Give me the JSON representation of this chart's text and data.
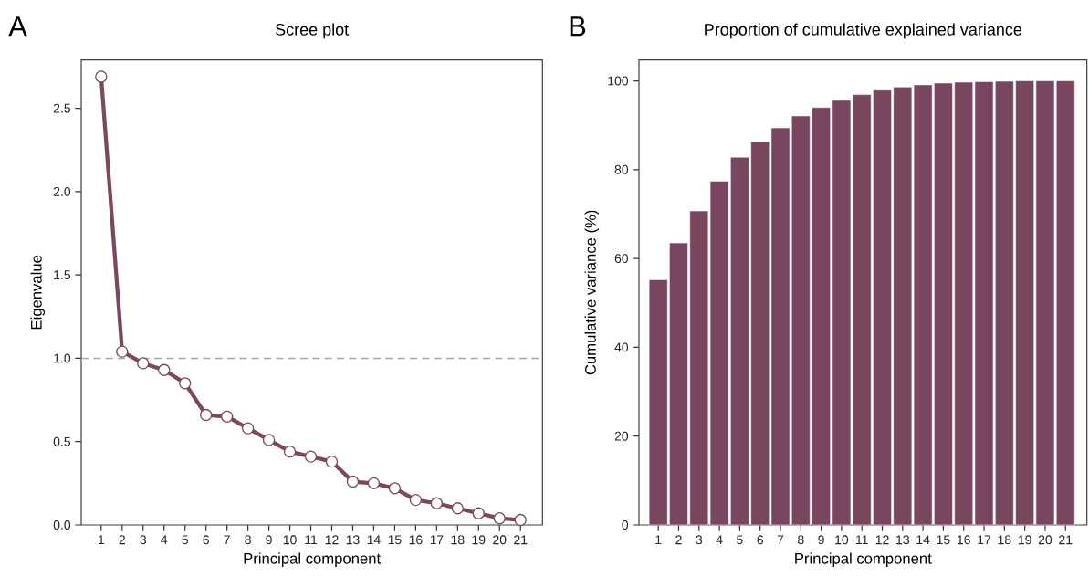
{
  "chart_data": [
    {
      "type": "line",
      "title": "Scree plot",
      "xlabel": "Principal component",
      "ylabel": "Eigenvalue",
      "categories": [
        "1",
        "2",
        "3",
        "4",
        "5",
        "6",
        "7",
        "8",
        "9",
        "10",
        "11",
        "12",
        "13",
        "14",
        "15",
        "16",
        "17",
        "18",
        "19",
        "20",
        "21"
      ],
      "series": [
        {
          "color": "#7a4961",
          "values": [
            2.69,
            1.04,
            0.97,
            0.93,
            0.85,
            0.66,
            0.65,
            0.58,
            0.51,
            0.44,
            0.41,
            0.38,
            0.26,
            0.25,
            0.22,
            0.15,
            0.13,
            0.1,
            0.07,
            0.04,
            0.03
          ]
        }
      ],
      "ylim": [
        0,
        2.79
      ],
      "yticks": [
        {
          "value": 0,
          "label": "0.0"
        },
        {
          "value": 0.5,
          "label": "0.5"
        },
        {
          "value": 1,
          "label": "1.0"
        },
        {
          "value": 1.5,
          "label": "1.5"
        },
        {
          "value": 2,
          "label": "2.0"
        },
        {
          "value": 2.5,
          "label": "2.5"
        }
      ],
      "marker": "circle",
      "line_style": "solid",
      "ref_lines": [
        {
          "axis": "y",
          "value": 1,
          "color": "#a6a6a6",
          "line_style": "dashed"
        }
      ],
      "annotations": [
        "A"
      ]
    },
    {
      "type": "bar",
      "title": "Proportion of cumulative explained variance",
      "xlabel": "Principal component",
      "ylabel": "Cumulative variance (%)",
      "categories": [
        "1",
        "2",
        "3",
        "4",
        "5",
        "6",
        "7",
        "8",
        "9",
        "10",
        "11",
        "12",
        "13",
        "14",
        "15",
        "16",
        "17",
        "18",
        "19",
        "20",
        "21"
      ],
      "series": [
        {
          "color": "#78475f",
          "values": [
            55.2,
            63.5,
            70.7,
            77.4,
            82.8,
            86.3,
            89.4,
            92.1,
            94.0,
            95.6,
            96.9,
            97.9,
            98.6,
            99.1,
            99.5,
            99.7,
            99.8,
            99.9,
            100,
            100,
            100
          ]
        }
      ],
      "ylim": [
        0,
        104.7
      ],
      "yticks": [
        0,
        20,
        40,
        60,
        80,
        100
      ],
      "annotations": [
        "B"
      ]
    }
  ]
}
